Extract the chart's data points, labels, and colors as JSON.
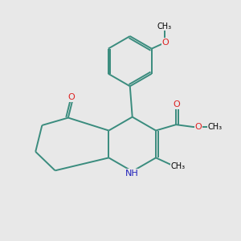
{
  "background_color": "#e8e8e8",
  "bond_color": "#3a8c7e",
  "bond_width": 1.4,
  "atom_colors": {
    "O": "#dd2222",
    "N": "#2222bb",
    "C": "#000000"
  },
  "figsize": [
    3.0,
    3.0
  ],
  "dpi": 100,
  "xlim": [
    0,
    10
  ],
  "ylim": [
    0,
    10
  ]
}
